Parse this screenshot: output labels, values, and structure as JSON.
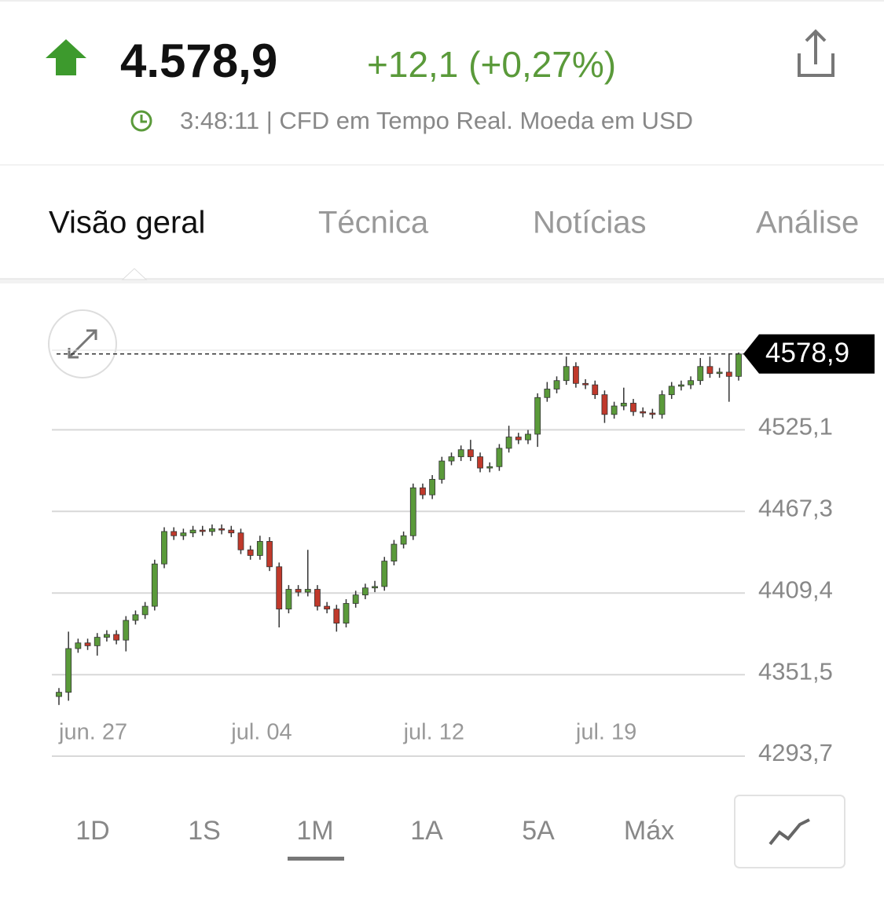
{
  "header": {
    "price": "4.578,9",
    "change": "+12,1 (+0,27%)",
    "status": "3:48:11 | CFD em Tempo Real. Moeda em USD"
  },
  "tabs": [
    "Visão geral",
    "Técnica",
    "Notícias",
    "Análise"
  ],
  "ranges": [
    "1D",
    "1S",
    "1M",
    "1A",
    "5A",
    "Máx"
  ],
  "chart_data": {
    "type": "candlestick",
    "categories": [
      "jun. 27",
      null,
      null,
      null,
      null,
      null,
      null,
      null,
      null,
      null,
      null,
      null,
      null,
      null,
      null,
      null,
      null,
      null,
      "jul. 04",
      null,
      null,
      null,
      null,
      null,
      null,
      null,
      null,
      null,
      null,
      null,
      null,
      null,
      null,
      null,
      null,
      null,
      "jul. 12",
      null,
      null,
      null,
      null,
      null,
      null,
      null,
      null,
      null,
      null,
      null,
      null,
      null,
      null,
      null,
      null,
      null,
      "jul. 19",
      null,
      null,
      null,
      null,
      null,
      null,
      null,
      null,
      null,
      null,
      null,
      null,
      null,
      null,
      null,
      null,
      null
    ],
    "open": [
      4336,
      4339,
      4370,
      4374,
      4372,
      4378,
      4380,
      4376,
      4390,
      4394,
      4400,
      4430,
      4453,
      4450,
      4452,
      4454,
      4453,
      4455,
      4454,
      4452,
      4440,
      4436,
      4446,
      4428,
      4398,
      4412,
      4410,
      4412,
      4400,
      4398,
      4388,
      4402,
      4408,
      4413,
      4414,
      4432,
      4444,
      4450,
      4484,
      4479,
      4490,
      4503,
      4506,
      4511,
      4506,
      4498,
      4499,
      4512,
      4520,
      4518,
      4522,
      4548,
      4554,
      4560,
      4570,
      4558,
      4557,
      4550,
      4536,
      4542,
      4544,
      4538,
      4537,
      4536,
      4550,
      4556,
      4557,
      4560,
      4570,
      4565,
      4566,
      4563
    ],
    "high": [
      4342,
      4382,
      4377,
      4377,
      4381,
      4383,
      4383,
      4393,
      4397,
      4403,
      4433,
      4456,
      4456,
      4455,
      4457,
      4457,
      4458,
      4458,
      4457,
      4455,
      4443,
      4450,
      4449,
      4431,
      4415,
      4415,
      4440,
      4415,
      4403,
      4401,
      4405,
      4411,
      4416,
      4418,
      4435,
      4447,
      4453,
      4487,
      4487,
      4493,
      4506,
      4509,
      4514,
      4518,
      4509,
      4502,
      4515,
      4528,
      4523,
      4525,
      4551,
      4559,
      4563,
      4577,
      4573,
      4561,
      4560,
      4553,
      4545,
      4555,
      4547,
      4541,
      4540,
      4553,
      4559,
      4560,
      4563,
      4576,
      4577,
      4569,
      4579,
      4580
    ],
    "low": [
      4330,
      4333,
      4367,
      4369,
      4365,
      4375,
      4373,
      4368,
      4387,
      4391,
      4397,
      4427,
      4447,
      4447,
      4449,
      4450,
      4450,
      4451,
      4449,
      4437,
      4433,
      4433,
      4425,
      4385,
      4395,
      4407,
      4407,
      4397,
      4395,
      4382,
      4385,
      4399,
      4405,
      4410,
      4411,
      4429,
      4441,
      4447,
      4476,
      4476,
      4487,
      4500,
      4503,
      4503,
      4495,
      4495,
      4496,
      4509,
      4515,
      4515,
      4513,
      4545,
      4551,
      4557,
      4555,
      4554,
      4547,
      4530,
      4533,
      4539,
      4535,
      4534,
      4533,
      4533,
      4547,
      4553,
      4554,
      4557,
      4562,
      4562,
      4545,
      4560
    ],
    "close": [
      4339,
      4370,
      4374,
      4372,
      4378,
      4380,
      4376,
      4390,
      4394,
      4400,
      4430,
      4453,
      4450,
      4452,
      4454,
      4453,
      4455,
      4454,
      4452,
      4440,
      4436,
      4446,
      4428,
      4398,
      4412,
      4410,
      4412,
      4400,
      4398,
      4388,
      4402,
      4408,
      4413,
      4414,
      4432,
      4444,
      4450,
      4484,
      4479,
      4490,
      4503,
      4506,
      4511,
      4506,
      4498,
      4499,
      4512,
      4520,
      4518,
      4522,
      4548,
      4554,
      4560,
      4570,
      4558,
      4557,
      4550,
      4536,
      4542,
      4544,
      4538,
      4537,
      4536,
      4550,
      4556,
      4557,
      4560,
      4570,
      4565,
      4566,
      4563,
      4578.9
    ],
    "up_color": "#5a9a3a",
    "down_color": "#c0392b",
    "ylim": [
      4293.7,
      4583
    ],
    "yticks": [
      {
        "value": 4293.7,
        "label": "4293,7"
      },
      {
        "value": 4351.5,
        "label": "4351,5"
      },
      {
        "value": 4409.4,
        "label": "4409,4"
      },
      {
        "value": 4467.3,
        "label": "4467,3"
      },
      {
        "value": 4525.1,
        "label": "4525,1"
      }
    ],
    "last_price": {
      "value": 4578.9,
      "label": "4578,9"
    },
    "grid": true
  }
}
